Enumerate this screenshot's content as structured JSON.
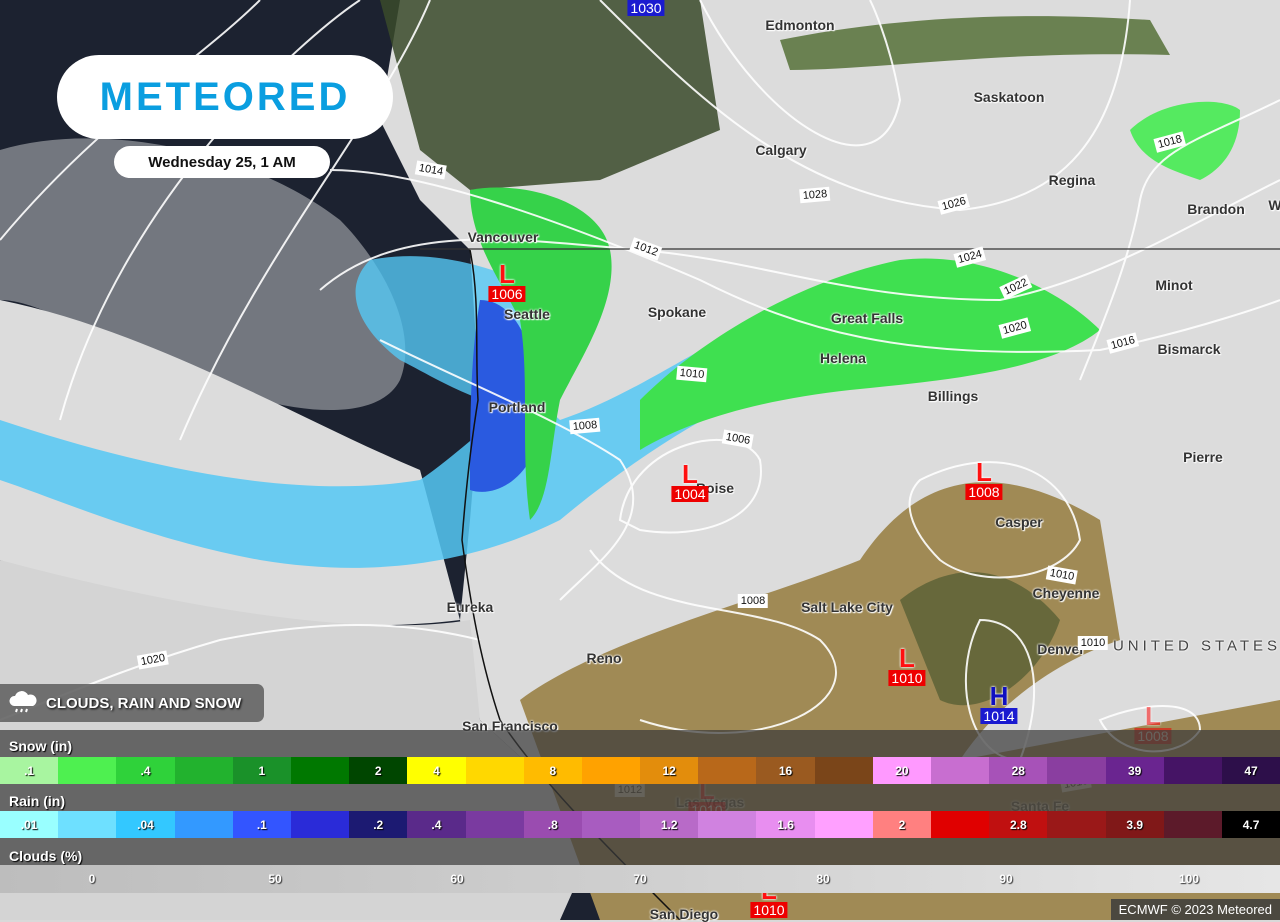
{
  "brand": {
    "logo": "METEORED",
    "date": "Wednesday 25, 1 AM"
  },
  "layer": {
    "icon": "cloud-rain-icon",
    "label": "CLOUDS, RAIN AND SNOW"
  },
  "cities": [
    {
      "name": "Edmonton"
    },
    {
      "name": "Saskatoon"
    },
    {
      "name": "Calgary"
    },
    {
      "name": "Regina"
    },
    {
      "name": "Brandon"
    },
    {
      "name": "W"
    },
    {
      "name": "Vancouver"
    },
    {
      "name": "Seattle"
    },
    {
      "name": "Spokane"
    },
    {
      "name": "Great Falls"
    },
    {
      "name": "Helena"
    },
    {
      "name": "Minot"
    },
    {
      "name": "Bismarck"
    },
    {
      "name": "Billings"
    },
    {
      "name": "Portland"
    },
    {
      "name": "Boise"
    },
    {
      "name": "Pierre"
    },
    {
      "name": "Casper"
    },
    {
      "name": "Cheyenne"
    },
    {
      "name": "Eureka"
    },
    {
      "name": "Salt Lake City"
    },
    {
      "name": "Reno"
    },
    {
      "name": "Denver"
    },
    {
      "name": "San Francisco"
    },
    {
      "name": "San Diego"
    },
    {
      "name": "Las Vegas"
    },
    {
      "name": "Santa Fe"
    }
  ],
  "country": "UNITED STATES",
  "isobars": [
    "1014",
    "1012",
    "1028",
    "1026",
    "1024",
    "1022",
    "1020",
    "1018",
    "1016",
    "1010",
    "1008",
    "1006",
    "1010",
    "1008",
    "1010",
    "1020",
    "1012",
    "1010"
  ],
  "pressure_centers": [
    {
      "type": "L",
      "value": "1006"
    },
    {
      "type": "L",
      "value": "1004"
    },
    {
      "type": "L",
      "value": "1008"
    },
    {
      "type": "L",
      "value": "1010"
    },
    {
      "type": "H",
      "value": "1014"
    },
    {
      "type": "L",
      "value": "1008"
    },
    {
      "type": "L",
      "value": "1010"
    },
    {
      "type": "H",
      "value": "1030"
    },
    {
      "type": "L",
      "value": "1010"
    }
  ],
  "legend": {
    "snow": {
      "title": "Snow (in)",
      "colors": [
        "#a8f5a0",
        "#4ef050",
        "#2fd23a",
        "#22b22e",
        "#1a9129",
        "#007800",
        "#004600",
        "#ffff00",
        "#ffd800",
        "#ffbb00",
        "#ffa200",
        "#e38d0c",
        "#b8681a",
        "#9a5a20",
        "#7a4519",
        "#ff99ff",
        "#c86ed0",
        "#a752b8",
        "#8a3ea0",
        "#6a2590",
        "#451465",
        "#2d0f4a"
      ],
      "labels": [
        ".1",
        "",
        ".4",
        "",
        "1",
        "",
        "2",
        "4",
        "",
        "8",
        "",
        "12",
        "",
        "16",
        "",
        "20",
        "",
        "28",
        "",
        "39",
        "",
        "47"
      ]
    },
    "rain": {
      "title": "Rain (in)",
      "colors": [
        "#99ffff",
        "#6ee0ff",
        "#33c8ff",
        "#3399ff",
        "#3355ff",
        "#2a2bd8",
        "#1c1a72",
        "#5a2a8a",
        "#7a3aa0",
        "#9a4cb0",
        "#a85cc0",
        "#b86ac8",
        "#d082e0",
        "#e88ef0",
        "#ffa0ff",
        "#ff8080",
        "#e00000",
        "#c01010",
        "#9a1818",
        "#801818",
        "#5c1a2a",
        "#000000"
      ],
      "labels": [
        ".01",
        "",
        ".04",
        "",
        ".1",
        "",
        ".2",
        ".4",
        "",
        ".8",
        "",
        "1.2",
        "",
        "1.6",
        "",
        "2",
        "",
        "2.8",
        "",
        "3.9",
        "",
        "4.7"
      ]
    },
    "clouds": {
      "title": "Clouds (%)",
      "labels": [
        "0",
        "50",
        "60",
        "70",
        "80",
        "90",
        "100"
      ]
    }
  },
  "credit": "ECMWF © 2023 Meteored"
}
